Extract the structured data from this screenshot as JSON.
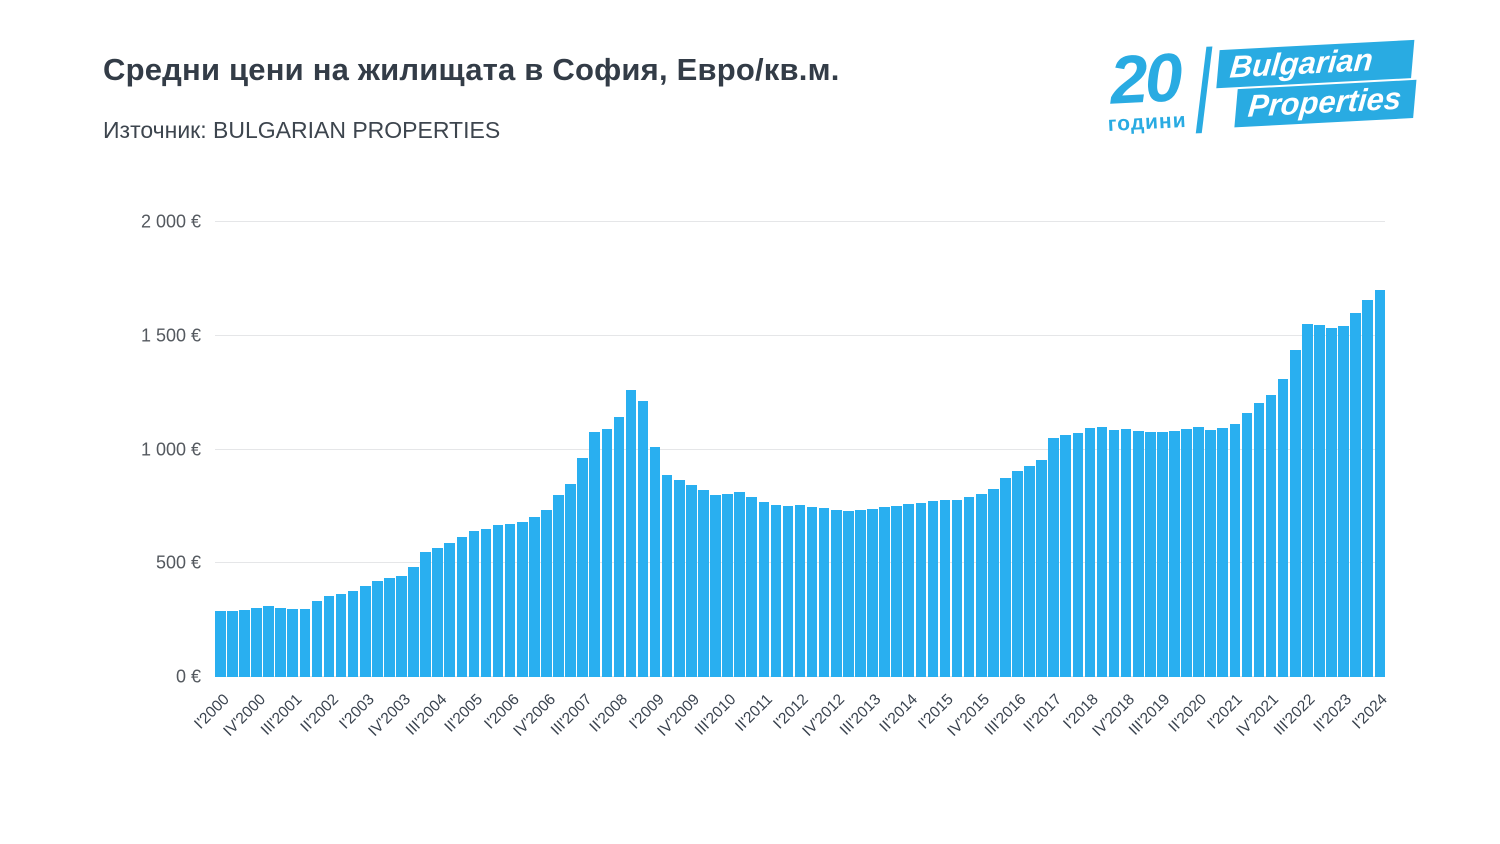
{
  "header": {
    "title": "Средни цени на жилищата в София, Евро/кв.м.",
    "source": "Източник: BULGARIAN PROPERTIES"
  },
  "logo": {
    "years_number": "20",
    "years_word": "години",
    "brand_line1": "Bulgarian",
    "brand_line2": "Properties"
  },
  "colors": {
    "brand_blue": "#29abe2",
    "bar_blue": "#29aff0",
    "grid": "#e5e6e8",
    "title_text": "#333c47",
    "axis_text": "#39424e"
  },
  "chart_data": {
    "type": "bar",
    "title": "Средни цени на жилищата в София, Евро/кв.м.",
    "source": "Източник: BULGARIAN PROPERTIES",
    "unit": "€/кв.м.",
    "grid": true,
    "legend": "none",
    "ylim": [
      0,
      2000
    ],
    "y_ticks": [
      {
        "value": 0,
        "label": "0 €"
      },
      {
        "value": 500,
        "label": "500 €"
      },
      {
        "value": 1000,
        "label": "1 000 €"
      },
      {
        "value": 1500,
        "label": "1 500 €"
      },
      {
        "value": 2000,
        "label": "2 000 €"
      }
    ],
    "x_label_every": 3,
    "x_tick_labels": [
      "I'2000",
      "IV'2000",
      "III'2001",
      "II'2002",
      "I'2003",
      "IV'2003",
      "III'2004",
      "II'2005",
      "I'2006",
      "IV'2006",
      "III'2007",
      "II'2008",
      "I'2009",
      "IV'2009",
      "III'2010",
      "II'2011",
      "I'2012",
      "IV'2012",
      "III'2013",
      "II'2014",
      "I'2015",
      "IV'2015",
      "III'2016",
      "II'2017",
      "I'2018",
      "IV'2018",
      "III'2019",
      "II'2020",
      "I'2021",
      "IV'2021",
      "III'2022",
      "II'2023",
      "I'2024"
    ],
    "values": [
      290,
      292,
      295,
      302,
      312,
      303,
      300,
      297,
      332,
      356,
      366,
      378,
      398,
      420,
      435,
      446,
      482,
      548,
      568,
      590,
      617,
      640,
      652,
      667,
      673,
      682,
      702,
      732,
      802,
      848,
      962,
      1078,
      1090,
      1145,
      1260,
      1215,
      1010,
      890,
      868,
      845,
      820,
      800,
      806,
      812,
      790,
      768,
      758,
      752,
      756,
      748,
      742,
      734,
      728,
      733,
      740,
      746,
      752,
      760,
      766,
      772,
      776,
      780,
      792,
      806,
      826,
      876,
      906,
      928,
      956,
      1052,
      1062,
      1072,
      1095,
      1100,
      1085,
      1090,
      1082,
      1078,
      1076,
      1080,
      1090,
      1100,
      1086,
      1094,
      1112,
      1162,
      1206,
      1238,
      1312,
      1438,
      1552,
      1548,
      1532,
      1542,
      1602,
      1656,
      1700
    ]
  }
}
